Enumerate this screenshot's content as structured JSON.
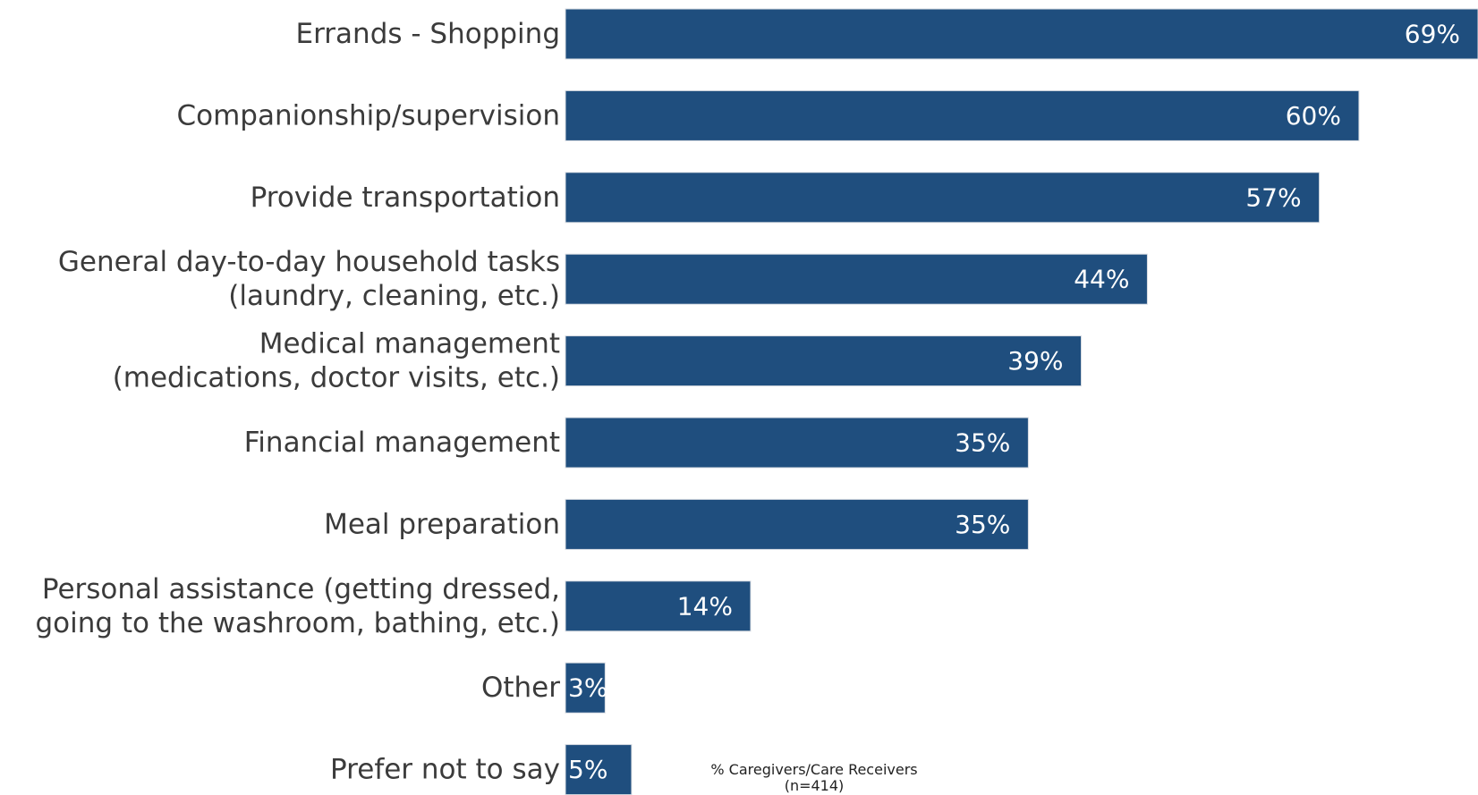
{
  "chart_data": {
    "type": "bar",
    "orientation": "horizontal",
    "categories": [
      [
        "Errands - Shopping"
      ],
      [
        "Companionship/supervision"
      ],
      [
        "Provide transportation"
      ],
      [
        "General day-to-day household tasks",
        "(laundry, cleaning, etc.)"
      ],
      [
        "Medical management",
        "(medications, doctor visits, etc.)"
      ],
      [
        "Financial management"
      ],
      [
        "Meal preparation"
      ],
      [
        "Personal assistance (getting dressed,",
        "going to the washroom, bathing, etc.)"
      ],
      [
        "Other"
      ],
      [
        "Prefer not to say"
      ]
    ],
    "values": [
      69,
      60,
      57,
      44,
      39,
      35,
      35,
      14,
      3,
      5
    ],
    "value_labels": [
      "69%",
      "60%",
      "57%",
      "44%",
      "39%",
      "35%",
      "35%",
      "14%",
      "3%",
      "5%"
    ],
    "xlim": [
      0,
      69
    ],
    "grid": false,
    "legend": "none",
    "bar_color": "#1f4e7e",
    "note": {
      "line1": "% Caregivers/Care Receivers",
      "line2": "(n=414)"
    }
  }
}
